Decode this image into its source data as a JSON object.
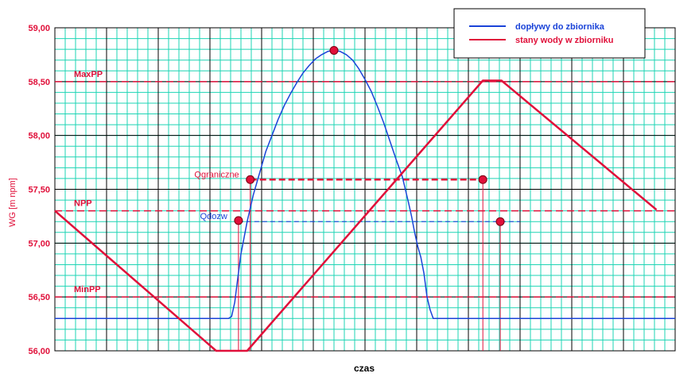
{
  "chart_data": {
    "type": "line",
    "title": "",
    "xlabel": "czas",
    "ylabel": "WG [m npm]",
    "ylim": [
      56.0,
      59.0
    ],
    "y_ticks": [
      "56,00",
      "56,50",
      "57,00",
      "57,50",
      "58,00",
      "58,50",
      "59,00"
    ],
    "grid": true,
    "legend_position": "top-right",
    "reference_lines": [
      {
        "label": "MaxPP",
        "value": 58.5
      },
      {
        "label": "NPP",
        "value": 57.3
      },
      {
        "label": "MinPP",
        "value": 56.5
      }
    ],
    "series": [
      {
        "name": "dopływy do zbiornika",
        "color": "#1a43d8",
        "points": [
          [
            0,
            56.3
          ],
          [
            28,
            56.3
          ],
          [
            28.5,
            56.32
          ],
          [
            29,
            56.45
          ],
          [
            29.5,
            56.68
          ],
          [
            30,
            56.9
          ],
          [
            30.5,
            57.05
          ],
          [
            31,
            57.2
          ],
          [
            32,
            57.45
          ],
          [
            33,
            57.65
          ],
          [
            34,
            57.85
          ],
          [
            35,
            58.0
          ],
          [
            36,
            58.15
          ],
          [
            37,
            58.28
          ],
          [
            38,
            58.39
          ],
          [
            39,
            58.49
          ],
          [
            40,
            58.58
          ],
          [
            41,
            58.65
          ],
          [
            42,
            58.71
          ],
          [
            43,
            58.75
          ],
          [
            44,
            58.78
          ],
          [
            45,
            58.79
          ],
          [
            46,
            58.78
          ],
          [
            47,
            58.75
          ],
          [
            48,
            58.7
          ],
          [
            49,
            58.62
          ],
          [
            50,
            58.52
          ],
          [
            51,
            58.41
          ],
          [
            52,
            58.27
          ],
          [
            53,
            58.12
          ],
          [
            54,
            57.95
          ],
          [
            55,
            57.78
          ],
          [
            56,
            57.62
          ],
          [
            56.5,
            57.5
          ],
          [
            57,
            57.38
          ],
          [
            57.5,
            57.25
          ],
          [
            58,
            57.1
          ],
          [
            58.5,
            56.97
          ],
          [
            59,
            56.87
          ],
          [
            59.5,
            56.72
          ],
          [
            60,
            56.5
          ],
          [
            60.5,
            56.38
          ],
          [
            61,
            56.3
          ],
          [
            62,
            56.3
          ],
          [
            100,
            56.3
          ]
        ]
      },
      {
        "name": "stany wody w zbiorniku",
        "color": "#e0103a",
        "points": [
          [
            0,
            57.3
          ],
          [
            26,
            56.0
          ],
          [
            31,
            56.0
          ],
          [
            69,
            58.51
          ],
          [
            72,
            58.51
          ],
          [
            97,
            57.31
          ]
        ]
      }
    ],
    "annotations": [
      {
        "label": "Qgraniczne",
        "value": 57.59,
        "color": "#e0103a",
        "x_from": 31.5,
        "x_to": 69
      },
      {
        "label": "Qdozw",
        "value": 57.2,
        "color": "#1a43d8",
        "x_from": 29.6,
        "x_to": 75
      }
    ],
    "markers": [
      {
        "x": 45,
        "y": 58.79
      },
      {
        "x": 31.5,
        "y": 57.59
      },
      {
        "x": 69,
        "y": 57.59
      },
      {
        "x": 29.6,
        "y": 57.21
      },
      {
        "x": 71.8,
        "y": 57.2
      }
    ],
    "vertical_lines": [
      {
        "x": 29.6,
        "y": 57.21,
        "color": "#e0103a"
      },
      {
        "x": 31.5,
        "y": 57.59,
        "color": "#e0103a"
      },
      {
        "x": 69,
        "y": 57.59,
        "color": "#e0103a"
      },
      {
        "x": 71.8,
        "y": 57.2,
        "color": "#e0103a"
      }
    ]
  }
}
